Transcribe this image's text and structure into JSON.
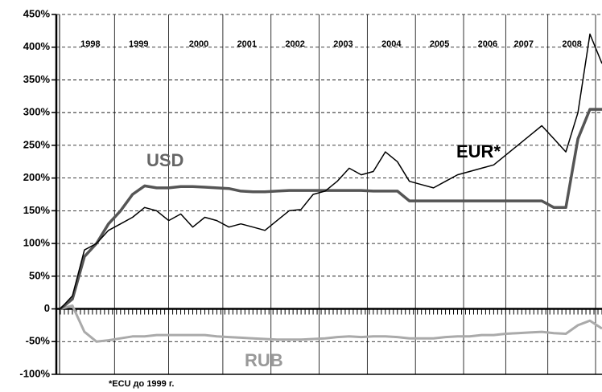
{
  "chart_data": {
    "type": "line",
    "categories": [
      null,
      null,
      "1998",
      null,
      null,
      null,
      "1999",
      null,
      null,
      null,
      null,
      "2000",
      null,
      null,
      null,
      "2001",
      null,
      null,
      null,
      "2002",
      null,
      null,
      null,
      "2003",
      null,
      null,
      null,
      "2004",
      null,
      null,
      null,
      "2005",
      null,
      null,
      null,
      "2006",
      null,
      null,
      "2007",
      null,
      null,
      null,
      "2008",
      null,
      null,
      null
    ],
    "series": [
      {
        "name": "USD",
        "color": "#555555",
        "width": 3.5,
        "label_color": "#666666",
        "values": [
          0,
          15,
          80,
          100,
          130,
          150,
          175,
          188,
          185,
          185,
          187,
          187,
          186,
          185,
          184,
          180,
          179,
          179,
          180,
          181,
          181,
          181,
          181,
          181,
          181,
          181,
          180,
          180,
          180,
          165,
          165,
          165,
          165,
          165,
          165,
          165,
          165,
          165,
          165,
          165,
          165,
          155,
          155,
          260,
          305,
          305
        ]
      },
      {
        "name": "EUR*",
        "color": "#000000",
        "width": 1.5,
        "label_color": "#000000",
        "values": [
          0,
          20,
          90,
          100,
          120,
          130,
          140,
          155,
          150,
          135,
          145,
          125,
          140,
          135,
          125,
          130,
          125,
          120,
          135,
          150,
          152,
          175,
          180,
          195,
          215,
          205,
          210,
          240,
          225,
          195,
          190,
          185,
          195,
          205,
          210,
          215,
          220,
          235,
          250,
          265,
          280,
          260,
          240,
          300,
          420,
          375
        ]
      },
      {
        "name": "RUB",
        "color": "#aaaaaa",
        "width": 3,
        "label_color": "#999999",
        "values": [
          0,
          5,
          -35,
          -50,
          -48,
          -45,
          -42,
          -42,
          -40,
          -40,
          -40,
          -40,
          -40,
          -42,
          -43,
          -44,
          -45,
          -46,
          -47,
          -47,
          -47,
          -46,
          -45,
          -43,
          -42,
          -43,
          -42,
          -42,
          -43,
          -45,
          -45,
          -45,
          -43,
          -42,
          -42,
          -40,
          -40,
          -38,
          -37,
          -36,
          -35,
          -37,
          -38,
          -25,
          -18,
          -30
        ]
      }
    ],
    "ylim": [
      -100,
      450
    ],
    "yticks": [
      {
        "value": -100,
        "label": "-100%"
      },
      {
        "value": -50,
        "label": "-50%"
      },
      0,
      {
        "value": 50,
        "label": "50%"
      },
      {
        "value": 100,
        "label": "100%"
      },
      {
        "value": 150,
        "label": "150%"
      },
      {
        "value": 200,
        "label": "200%"
      },
      {
        "value": 250,
        "label": "250%"
      },
      {
        "value": 300,
        "label": "300%"
      },
      {
        "value": 350,
        "label": "350%"
      },
      {
        "value": 400,
        "label": "400%"
      },
      {
        "value": 450,
        "label": "450%"
      }
    ],
    "grid": true,
    "annotation": "*ECU до 1999 г."
  }
}
